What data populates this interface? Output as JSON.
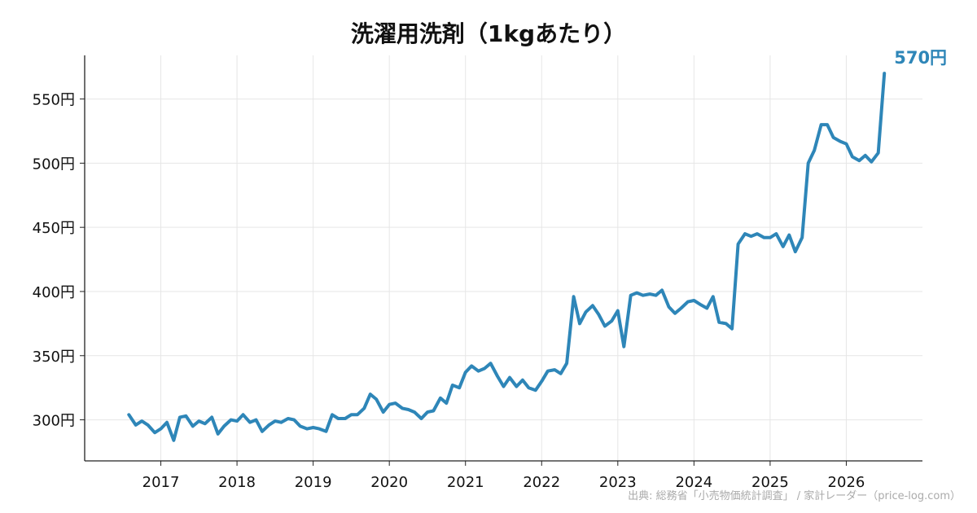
{
  "chart_data": {
    "type": "line",
    "title": "洗濯用洗剤（1kgあたり）",
    "xlabel": "",
    "ylabel": "",
    "x_tick_labels": [
      "2017",
      "2018",
      "2019",
      "2020",
      "2021",
      "2022",
      "2023",
      "2024",
      "2025",
      "2026"
    ],
    "x_range": [
      2016.0,
      2027.0
    ],
    "y_ticks": [
      300,
      350,
      400,
      450,
      500,
      550
    ],
    "y_tick_labels": [
      "300円",
      "350円",
      "400円",
      "450円",
      "500円",
      "550円"
    ],
    "ylim": [
      268,
      584
    ],
    "grid": true,
    "series": [
      {
        "color": "#2e86b8",
        "end_label": "570円",
        "x": [
          2016.58,
          2016.67,
          2016.75,
          2016.83,
          2016.92,
          2017.0,
          2017.08,
          2017.17,
          2017.25,
          2017.33,
          2017.42,
          2017.5,
          2017.58,
          2017.67,
          2017.75,
          2017.83,
          2017.92,
          2018.0,
          2018.08,
          2018.17,
          2018.25,
          2018.33,
          2018.42,
          2018.5,
          2018.58,
          2018.67,
          2018.75,
          2018.83,
          2018.92,
          2019.0,
          2019.08,
          2019.17,
          2019.25,
          2019.33,
          2019.42,
          2019.5,
          2019.58,
          2019.67,
          2019.75,
          2019.83,
          2019.92,
          2020.0,
          2020.08,
          2020.17,
          2020.25,
          2020.33,
          2020.42,
          2020.5,
          2020.58,
          2020.67,
          2020.75,
          2020.83,
          2020.92,
          2021.0,
          2021.08,
          2021.17,
          2021.25,
          2021.33,
          2021.42,
          2021.5,
          2021.58,
          2021.67,
          2021.75,
          2021.83,
          2021.92,
          2022.0,
          2022.08,
          2022.17,
          2022.25,
          2022.33,
          2022.42,
          2022.5,
          2022.58,
          2022.67,
          2022.75,
          2022.83,
          2022.92,
          2023.0,
          2023.08,
          2023.17,
          2023.25,
          2023.33,
          2023.42,
          2023.5,
          2023.58,
          2023.67,
          2023.75,
          2023.83,
          2023.92,
          2024.0,
          2024.08,
          2024.17,
          2024.25,
          2024.33,
          2024.42,
          2024.5,
          2024.58,
          2024.67,
          2024.75,
          2024.83,
          2024.92,
          2025.0,
          2025.08,
          2025.17,
          2025.25,
          2025.33,
          2025.42,
          2025.5,
          2025.58,
          2025.67,
          2025.75,
          2025.83,
          2025.92,
          2026.0,
          2026.08,
          2026.17,
          2026.25,
          2026.33,
          2026.42,
          2026.5
        ],
        "values": [
          304,
          296,
          299,
          296,
          290,
          293,
          298,
          284,
          302,
          303,
          295,
          299,
          297,
          302,
          289,
          295,
          300,
          299,
          304,
          298,
          300,
          291,
          296,
          299,
          298,
          301,
          300,
          295,
          293,
          294,
          293,
          291,
          304,
          301,
          301,
          304,
          304,
          309,
          320,
          316,
          306,
          312,
          313,
          309,
          308,
          306,
          301,
          306,
          307,
          317,
          313,
          327,
          325,
          337,
          342,
          338,
          340,
          344,
          334,
          326,
          333,
          326,
          331,
          325,
          323,
          330,
          338,
          339,
          336,
          344,
          396,
          375,
          384,
          389,
          382,
          373,
          377,
          385,
          357,
          397,
          399,
          397,
          398,
          397,
          401,
          388,
          383,
          387,
          392,
          393,
          390,
          387,
          396,
          376,
          375,
          371,
          437,
          445,
          443,
          445,
          442,
          442,
          445,
          435,
          444,
          431,
          442,
          500,
          510,
          530,
          530,
          520,
          517,
          515,
          505,
          502,
          506,
          501,
          508,
          570
        ]
      }
    ]
  },
  "source_text": "出典: 総務省「小売物価統計調査」 / 家計レーダー（price-log.com）"
}
